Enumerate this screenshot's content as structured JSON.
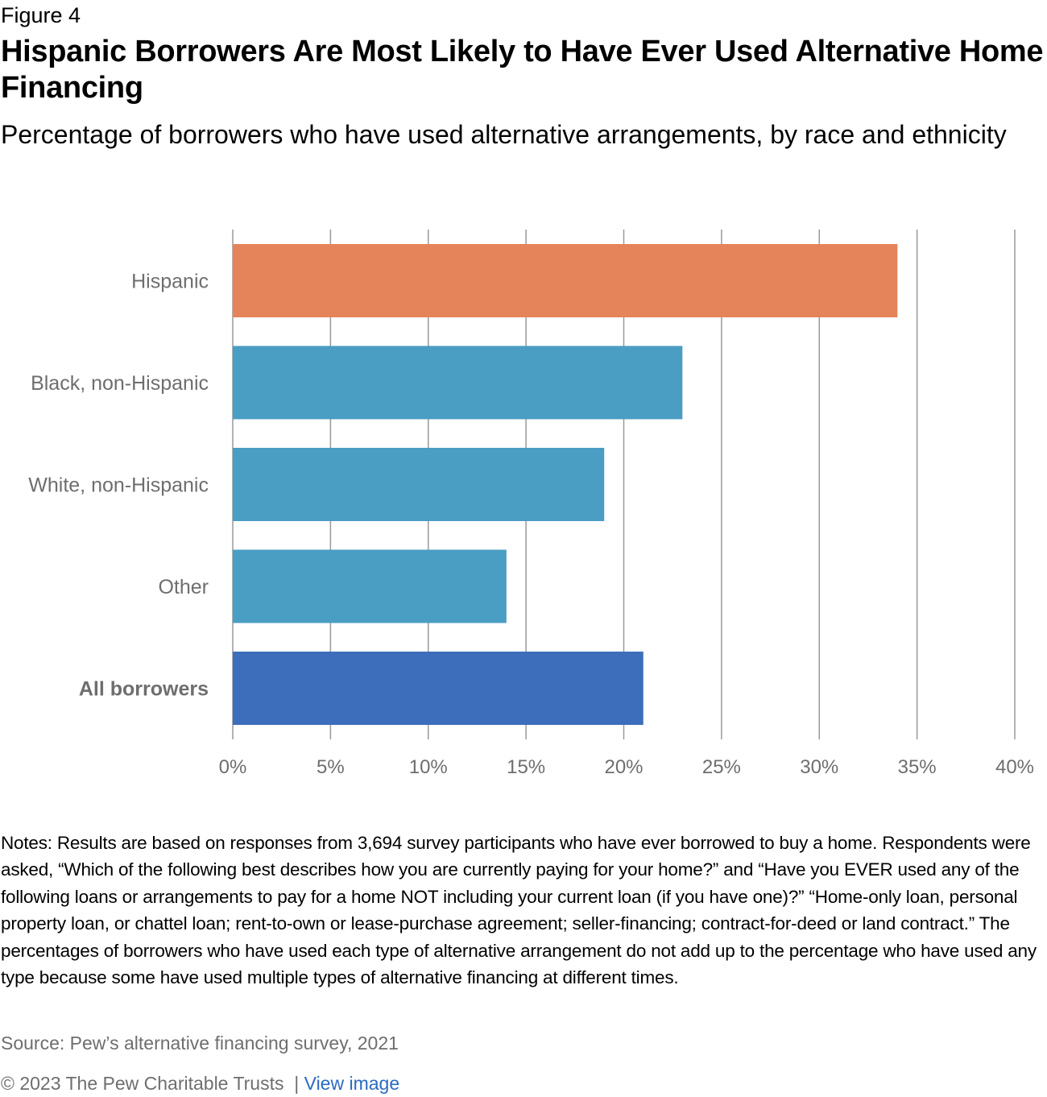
{
  "figure_label": "Figure 4",
  "title": "Hispanic Borrowers Are Most Likely to Have Ever Used Alternative Home Financing",
  "subtitle": "Percentage of borrowers who have used alternative arrangements, by race and ethnicity",
  "chart_data": {
    "type": "bar",
    "orientation": "horizontal",
    "categories": [
      "Hispanic",
      "Black, non-Hispanic",
      "White, non-Hispanic",
      "Other",
      "All borrowers"
    ],
    "values": [
      34,
      23,
      19,
      14,
      21
    ],
    "colors": [
      "#e5835a",
      "#4a9dc3",
      "#4a9dc3",
      "#4a9dc3",
      "#3d6ebc"
    ],
    "bold_categories": [
      "All borrowers"
    ],
    "xlim": [
      0,
      40
    ],
    "xticks": [
      "0%",
      "5%",
      "10%",
      "15%",
      "20%",
      "25%",
      "30%",
      "35%",
      "40%"
    ],
    "xtick_values": [
      0,
      5,
      10,
      15,
      20,
      25,
      30,
      35,
      40
    ],
    "grid": true,
    "xlabel": "",
    "ylabel": ""
  },
  "notes": "Notes: Results are based on responses from 3,694 survey participants who have ever borrowed to buy a home. Respondents were asked, “Which of the following best describes how you are currently paying for your home?” and “Have you EVER used any of the following loans or arrangements to pay for a home NOT including your current loan (if you have one)?” “Home-only loan, personal property loan, or chattel loan; rent-to-own or lease-purchase agreement; seller-financing; contract-for-deed or land contract.” The percentages of borrowers who have used each type of alternative arrangement do not add up to the percentage who have used any type because some have used multiple types of alternative financing at different times.",
  "source": "Source: Pew’s alternative financing survey, 2021",
  "copyright": "© 2023 The Pew Charitable Trusts",
  "separator": "|",
  "view_image_link": "View image"
}
